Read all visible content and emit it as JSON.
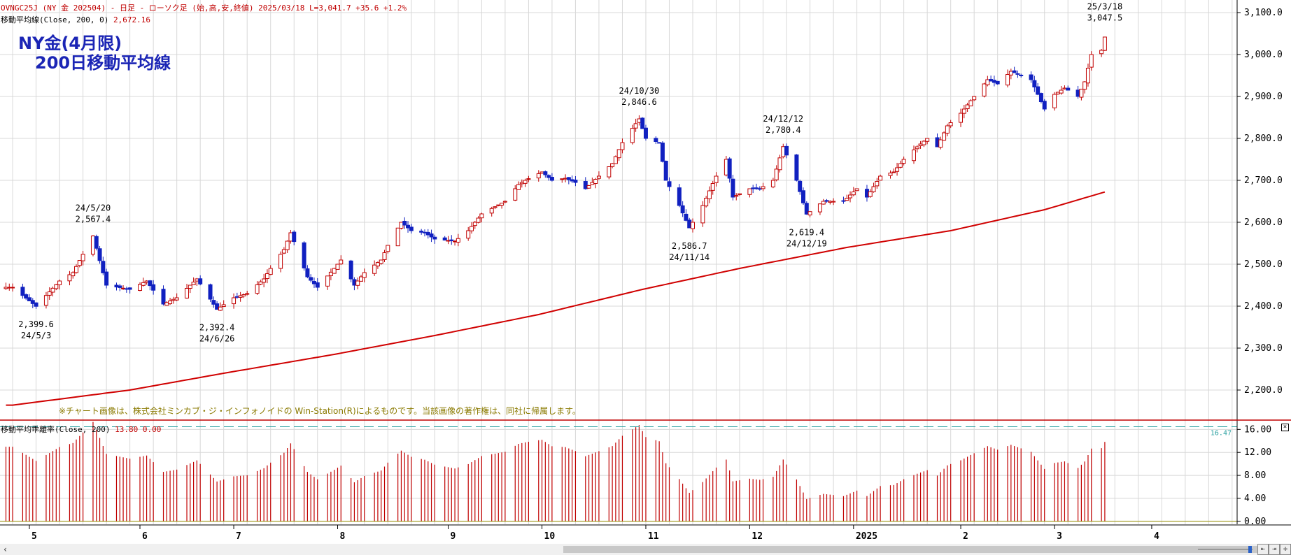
{
  "header": {
    "symbol_line": "OVNGC25J (NY 金 202504) - 日足 - ローソク足 (始,高,安,終値)  2025/03/18 L=3,041.7 +35.6  +1.2%",
    "ma_label": "移動平均線(Close, 200, 0)",
    "ma_value": "2,672.16",
    "osc_label": "移動平均乖離率(Close, 200)",
    "osc_values": "13.80 0.00"
  },
  "title": "NY金(4月限)\n　200日移動平均線",
  "notice": "※チャート画像は、株式会社ミンカブ・ジ・インフォノイドの Win-Station(R)によるものです。当該画像の著作権は、同社に帰属します。",
  "controls": {
    "close_icon": "close-icon",
    "scroll_left_icon": "chevron-left-icon",
    "scroll_left": "‹"
  },
  "colors": {
    "up_candle": "#c00000",
    "down_candle": "#1020c0",
    "ma_line": "#d00000",
    "oscillator_bar": "#c00000",
    "threshold_line": "#2aa0a0",
    "grid": "#d8d8d8",
    "annotation": "#000000"
  },
  "chart_data": [
    {
      "type": "candlestick",
      "title": "",
      "y_axis_side": "right",
      "ylim": [
        2130,
        3130
      ],
      "y_ticks": [
        2200,
        2300,
        2400,
        2500,
        2600,
        2700,
        2800,
        2900,
        3000,
        3100
      ],
      "y_tick_labels": [
        "2,200.0",
        "2,300.0",
        "2,400.0",
        "2,500.0",
        "2,600.0",
        "2,700.0",
        "2,800.0",
        "2,900.0",
        "3,000.0",
        "3,100.0"
      ],
      "x_tick_labels": [
        "5",
        "6",
        "7",
        "8",
        "9",
        "10",
        "11",
        "12",
        "2025",
        "2",
        "3",
        "4"
      ],
      "x_tick_dates": [
        "2024-05-01",
        "2024-06-03",
        "2024-07-01",
        "2024-08-01",
        "2024-09-03",
        "2024-10-01",
        "2024-11-01",
        "2024-12-02",
        "2025-01-02",
        "2025-02-03",
        "2025-03-03",
        "2025-04-01"
      ],
      "grid": true,
      "price_anchors": [
        [
          "2024-04-26",
          2445
        ],
        [
          "2024-05-03",
          2399.6
        ],
        [
          "2024-05-10",
          2460
        ],
        [
          "2024-05-14",
          2480
        ],
        [
          "2024-05-20",
          2567.4
        ],
        [
          "2024-05-24",
          2450
        ],
        [
          "2024-05-31",
          2440
        ],
        [
          "2024-06-05",
          2460
        ],
        [
          "2024-06-10",
          2405
        ],
        [
          "2024-06-14",
          2420
        ],
        [
          "2024-06-20",
          2465
        ],
        [
          "2024-06-26",
          2392.4
        ],
        [
          "2024-07-01",
          2420
        ],
        [
          "2024-07-05",
          2430
        ],
        [
          "2024-07-10",
          2465
        ],
        [
          "2024-07-12",
          2490
        ],
        [
          "2024-07-16",
          2535
        ],
        [
          "2024-07-18",
          2575
        ],
        [
          "2024-07-23",
          2470
        ],
        [
          "2024-07-26",
          2445
        ],
        [
          "2024-07-31",
          2490
        ],
        [
          "2024-08-02",
          2510
        ],
        [
          "2024-08-06",
          2450
        ],
        [
          "2024-08-09",
          2480
        ],
        [
          "2024-08-14",
          2510
        ],
        [
          "2024-08-16",
          2545
        ],
        [
          "2024-08-20",
          2600
        ],
        [
          "2024-08-23",
          2580
        ],
        [
          "2024-08-27",
          2575
        ],
        [
          "2024-08-30",
          2560
        ],
        [
          "2024-09-05",
          2555
        ],
        [
          "2024-09-09",
          2580
        ],
        [
          "2024-09-13",
          2620
        ],
        [
          "2024-09-20",
          2650
        ],
        [
          "2024-09-24",
          2690
        ],
        [
          "2024-09-26",
          2700
        ],
        [
          "2024-10-01",
          2720
        ],
        [
          "2024-10-04",
          2700
        ],
        [
          "2024-10-08",
          2705
        ],
        [
          "2024-10-11",
          2695
        ],
        [
          "2024-10-14",
          2680
        ],
        [
          "2024-10-18",
          2710
        ],
        [
          "2024-10-22",
          2740
        ],
        [
          "2024-10-25",
          2790
        ],
        [
          "2024-10-30",
          2846.6
        ],
        [
          "2024-11-01",
          2800
        ],
        [
          "2024-11-05",
          2790
        ],
        [
          "2024-11-07",
          2700
        ],
        [
          "2024-11-11",
          2640
        ],
        [
          "2024-11-14",
          2586.7
        ],
        [
          "2024-11-18",
          2640
        ],
        [
          "2024-11-22",
          2710
        ],
        [
          "2024-11-25",
          2750
        ],
        [
          "2024-11-27",
          2660
        ],
        [
          "2024-12-02",
          2680
        ],
        [
          "2024-12-05",
          2680
        ],
        [
          "2024-12-09",
          2700
        ],
        [
          "2024-12-12",
          2780.4
        ],
        [
          "2024-12-16",
          2700
        ],
        [
          "2024-12-19",
          2619.4
        ],
        [
          "2024-12-24",
          2650
        ],
        [
          "2024-12-30",
          2650
        ],
        [
          "2025-01-03",
          2680
        ],
        [
          "2025-01-06",
          2660
        ],
        [
          "2025-01-10",
          2710
        ],
        [
          "2025-01-14",
          2720
        ],
        [
          "2025-01-17",
          2750
        ],
        [
          "2025-01-21",
          2780
        ],
        [
          "2025-01-24",
          2800
        ],
        [
          "2025-01-27",
          2780
        ],
        [
          "2025-01-30",
          2830
        ],
        [
          "2025-02-03",
          2860
        ],
        [
          "2025-02-07",
          2900
        ],
        [
          "2025-02-11",
          2940
        ],
        [
          "2025-02-14",
          2930
        ],
        [
          "2025-02-18",
          2960
        ],
        [
          "2025-02-21",
          2950
        ],
        [
          "2025-02-24",
          2940
        ],
        [
          "2025-02-28",
          2870
        ],
        [
          "2025-03-03",
          2905
        ],
        [
          "2025-03-06",
          2920
        ],
        [
          "2025-03-10",
          2900
        ],
        [
          "2025-03-12",
          2935
        ],
        [
          "2025-03-14",
          3000
        ],
        [
          "2025-03-17",
          3010
        ],
        [
          "2025-03-18",
          3041.7
        ]
      ],
      "moving_average": {
        "period": 200,
        "anchors": [
          [
            "2024-04-26",
            2164
          ],
          [
            "2024-05-31",
            2200
          ],
          [
            "2024-06-28",
            2240
          ],
          [
            "2024-07-31",
            2285
          ],
          [
            "2024-08-30",
            2330
          ],
          [
            "2024-09-30",
            2380
          ],
          [
            "2024-10-31",
            2440
          ],
          [
            "2024-11-29",
            2490
          ],
          [
            "2024-12-31",
            2540
          ],
          [
            "2025-01-31",
            2580
          ],
          [
            "2025-02-28",
            2630
          ],
          [
            "2025-03-18",
            2672.16
          ]
        ]
      },
      "annotations": [
        {
          "date_label": "24/5/3",
          "value": "2,399.6",
          "position": "below"
        },
        {
          "date_label": "24/5/20",
          "value": "2,567.4",
          "position": "above"
        },
        {
          "date_label": "24/6/26",
          "value": "2,392.4",
          "position": "below"
        },
        {
          "date_label": "24/10/30",
          "value": "2,846.6",
          "position": "above"
        },
        {
          "date_label": "24/11/14",
          "value": "2,586.7",
          "position": "below"
        },
        {
          "date_label": "24/12/12",
          "value": "2,780.4",
          "position": "above"
        },
        {
          "date_label": "24/12/19",
          "value": "2,619.4",
          "position": "below"
        },
        {
          "date_label": "25/3/18",
          "value": "3,047.5",
          "position": "above"
        }
      ],
      "last_label": "3,047.5"
    },
    {
      "type": "bar",
      "title": "",
      "y_axis_side": "right",
      "ylim": [
        -0.5,
        17.5
      ],
      "y_ticks": [
        0,
        4,
        8,
        12,
        16
      ],
      "y_tick_labels": [
        "0.00",
        "4.00",
        "8.00",
        "12.00",
        "16.00"
      ],
      "threshold": {
        "value": 16.47,
        "label": "16.47",
        "style": "dashed"
      },
      "last_value": 13.8
    }
  ]
}
